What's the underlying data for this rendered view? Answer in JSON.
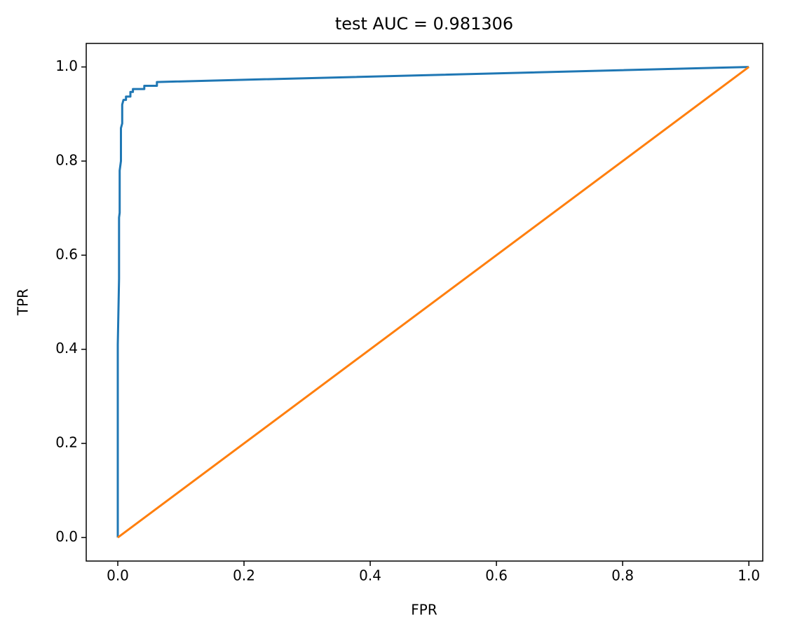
{
  "chart_data": {
    "type": "line",
    "title": "test AUC = 0.981306",
    "x_label": "FPR",
    "y_label": "TPR",
    "xlim": [
      -0.05,
      1.022
    ],
    "ylim": [
      -0.05,
      1.05
    ],
    "xticks": [
      {
        "value": 0,
        "label": "0.0"
      },
      {
        "value": 0.2,
        "label": "0.2"
      },
      {
        "value": 0.4,
        "label": "0.4"
      },
      {
        "value": 0.6,
        "label": "0.6"
      },
      {
        "value": 0.8,
        "label": "0.8"
      },
      {
        "value": 1,
        "label": "1.0"
      }
    ],
    "yticks": [
      {
        "value": 0,
        "label": "0.0"
      },
      {
        "value": 0.2,
        "label": "0.2"
      },
      {
        "value": 0.4,
        "label": "0.4"
      },
      {
        "value": 0.6,
        "label": "0.6"
      },
      {
        "value": 0.8,
        "label": "0.8"
      },
      {
        "value": 1,
        "label": "1.0"
      }
    ],
    "grid": false,
    "series": [
      {
        "color": "#1f77b4",
        "x": [
          0,
          0,
          0.002,
          0.002,
          0.003,
          0.003,
          0.005,
          0.005,
          0.007,
          0.007,
          0.009,
          0.013,
          0.013,
          0.02,
          0.02,
          0.024,
          0.024,
          0.042,
          0.042,
          0.062,
          0.062,
          1
        ],
        "values": [
          0,
          0.41,
          0.55,
          0.68,
          0.69,
          0.78,
          0.8,
          0.87,
          0.88,
          0.92,
          0.93,
          0.93,
          0.937,
          0.937,
          0.947,
          0.947,
          0.953,
          0.953,
          0.96,
          0.96,
          0.968,
          1
        ]
      },
      {
        "color": "#ff7f0e",
        "x": [
          0,
          1
        ],
        "values": [
          0,
          1
        ]
      }
    ]
  }
}
